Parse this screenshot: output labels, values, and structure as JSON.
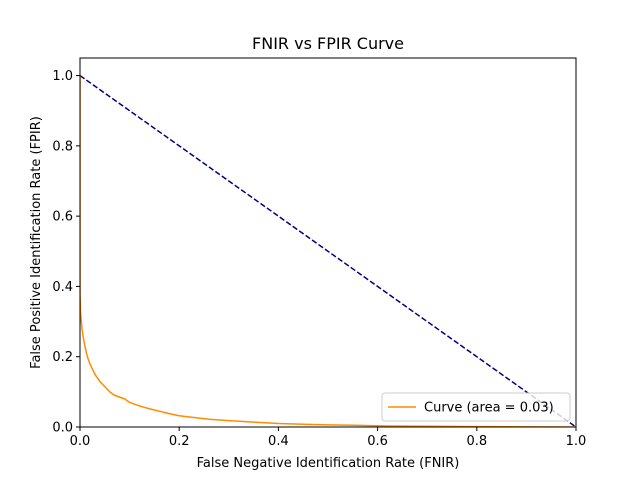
{
  "chart_data": {
    "type": "line",
    "title": "FNIR vs FPIR Curve",
    "xlabel": "False Negative Identification Rate (FNIR)",
    "ylabel": "False Positive Identification Rate (FPIR)",
    "xlim": [
      0,
      1
    ],
    "ylim": [
      0,
      1.05
    ],
    "xticks": [
      0.0,
      0.2,
      0.4,
      0.6,
      0.8,
      1.0
    ],
    "xtick_labels": [
      "0.0",
      "0.2",
      "0.4",
      "0.6",
      "0.8",
      "1.0"
    ],
    "yticks": [
      0.0,
      0.2,
      0.4,
      0.6,
      0.8,
      1.0
    ],
    "ytick_labels": [
      "0.0",
      "0.2",
      "0.4",
      "0.6",
      "0.8",
      "1.0"
    ],
    "grid": false,
    "legend_position": "lower-right",
    "series": [
      {
        "name": "Curve (area = 0.03)",
        "color": "#ff8c00",
        "style": "solid",
        "x": [
          0.0,
          0.0,
          0.0,
          0.0,
          0.001,
          0.002,
          0.004,
          0.006,
          0.008,
          0.01,
          0.013,
          0.016,
          0.02,
          0.025,
          0.03,
          0.035,
          0.04,
          0.05,
          0.06,
          0.07,
          0.08,
          0.09,
          0.1,
          0.12,
          0.14,
          0.16,
          0.18,
          0.2,
          0.23,
          0.26,
          0.3,
          0.35,
          0.4,
          0.45,
          0.5,
          0.55,
          0.62,
          0.7,
          0.8,
          0.9,
          1.0
        ],
        "y": [
          1.0,
          0.7,
          0.45,
          0.38,
          0.33,
          0.31,
          0.28,
          0.26,
          0.245,
          0.23,
          0.21,
          0.195,
          0.18,
          0.165,
          0.15,
          0.14,
          0.13,
          0.115,
          0.1,
          0.09,
          0.085,
          0.08,
          0.07,
          0.06,
          0.052,
          0.045,
          0.038,
          0.032,
          0.027,
          0.022,
          0.018,
          0.014,
          0.01,
          0.008,
          0.006,
          0.005,
          0.003,
          0.002,
          0.001,
          0.0005,
          0.0
        ]
      },
      {
        "color": "#000080",
        "style": "dashed",
        "x": [
          0.0,
          1.0
        ],
        "y": [
          1.0,
          0.0
        ]
      }
    ]
  }
}
